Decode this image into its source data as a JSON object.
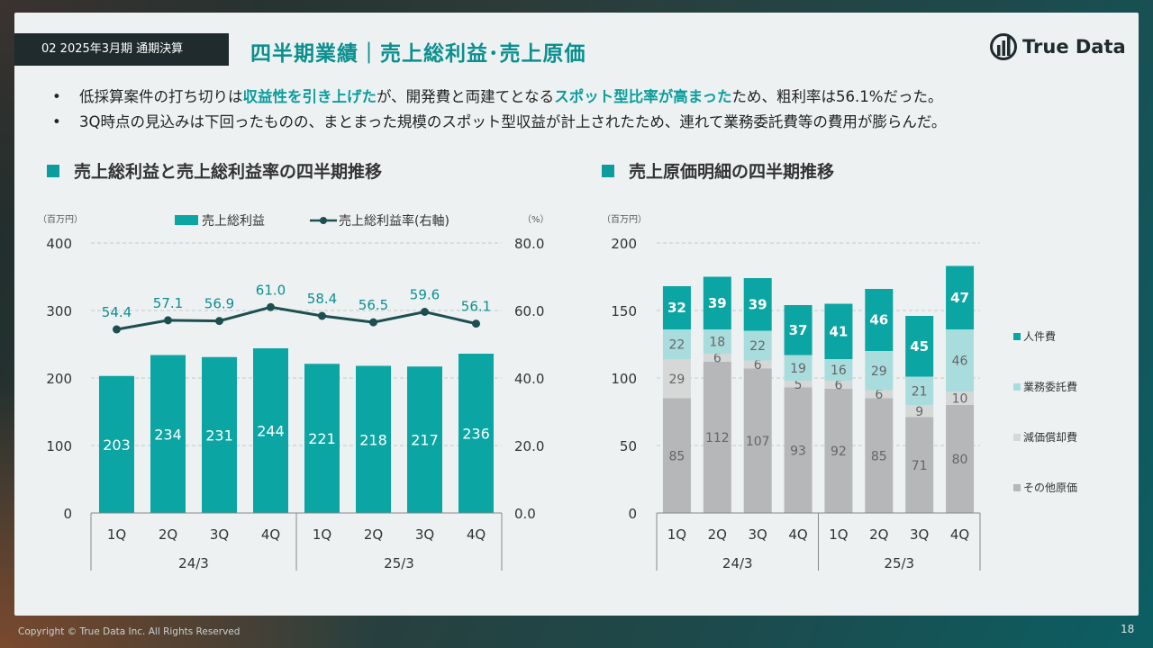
{
  "header": {
    "section_tag": "02 2025年3月期 通期決算",
    "title": "四半期業績｜売上総利益･売上原価",
    "logo_text": "True Data"
  },
  "bullets": [
    {
      "parts": [
        {
          "text": "低採算案件の打ち切りは",
          "hl": false
        },
        {
          "text": "収益性を引き上げた",
          "hl": true
        },
        {
          "text": "が、開発費と両建てとなる",
          "hl": false
        },
        {
          "text": "スポット型比率が高まった",
          "hl": true
        },
        {
          "text": "ため、粗利率は56.1%だった。",
          "hl": false
        }
      ]
    },
    {
      "parts": [
        {
          "text": "3Q時点の見込みは下回ったものの、まとまった規模のスポット型収益が計上されたため、連れて業務委託費等の費用が膨らんだ。",
          "hl": false
        }
      ]
    }
  ],
  "left_chart_title": "売上総利益と売上総利益率の四半期推移",
  "right_chart_title": "売上原価明細の四半期推移",
  "chart_data": [
    {
      "type": "bar",
      "title": "売上総利益と売上総利益率の四半期推移",
      "unit_left": "（百万円）",
      "unit_right": "（%）",
      "categories": [
        "1Q",
        "2Q",
        "3Q",
        "4Q",
        "1Q",
        "2Q",
        "3Q",
        "4Q"
      ],
      "groups": [
        "24/3",
        "25/3"
      ],
      "ylim": [
        0,
        400
      ],
      "yticks": [
        "0",
        "100",
        "200",
        "300",
        "400"
      ],
      "y2lim": [
        0,
        80
      ],
      "y2ticks": [
        "0.0",
        "20.0",
        "40.0",
        "60.0",
        "80.0"
      ],
      "series": [
        {
          "name": "売上総利益",
          "type": "bar",
          "axis": "left",
          "color": "#0ba5a3",
          "values": [
            203,
            234,
            231,
            244,
            221,
            218,
            217,
            236
          ]
        },
        {
          "name": "売上総利益率(右軸)",
          "type": "line",
          "axis": "right",
          "color": "#1d4f50",
          "values": [
            54.4,
            57.1,
            56.9,
            61.0,
            58.4,
            56.5,
            59.6,
            56.1
          ],
          "labels": [
            "54.4",
            "57.1",
            "56.9",
            "61.0",
            "58.4",
            "56.5",
            "59.6",
            "56.1"
          ]
        }
      ],
      "grid": true
    },
    {
      "type": "bar",
      "title": "売上原価明細の四半期推移",
      "stacked": true,
      "unit_left": "（百万円）",
      "categories": [
        "1Q",
        "2Q",
        "3Q",
        "4Q",
        "1Q",
        "2Q",
        "3Q",
        "4Q"
      ],
      "groups": [
        "24/3",
        "25/3"
      ],
      "ylim": [
        0,
        200
      ],
      "yticks": [
        "0",
        "50",
        "100",
        "150",
        "200"
      ],
      "series": [
        {
          "name": "その他原価",
          "color": "#b5b7b8",
          "label_color": "#666",
          "values": [
            85,
            112,
            107,
            93,
            92,
            85,
            71,
            80
          ]
        },
        {
          "name": "減価償却費",
          "color": "#d6d8d8",
          "label_color": "#666",
          "values": [
            29,
            6,
            6,
            5,
            6,
            6,
            9,
            10
          ]
        },
        {
          "name": "業務委託費",
          "color": "#a9dcdd",
          "label_color": "#666",
          "values": [
            22,
            18,
            22,
            19,
            16,
            29,
            21,
            46
          ]
        },
        {
          "name": "人件費",
          "color": "#0ba5a3",
          "label_color": "#ffffff",
          "values": [
            32,
            39,
            39,
            37,
            41,
            46,
            45,
            47
          ]
        }
      ],
      "legend_position": "right",
      "grid": true
    }
  ],
  "footer": {
    "copyright": "Copyright © True Data Inc. All Rights Reserved",
    "page": "18"
  }
}
